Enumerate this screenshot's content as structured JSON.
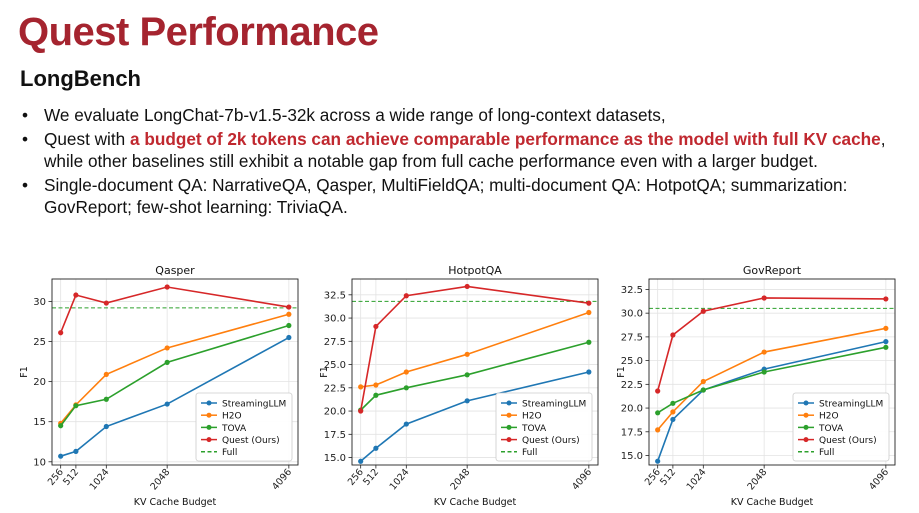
{
  "slide": {
    "title": "Quest Performance",
    "subtitle": "LongBench",
    "bullets": [
      {
        "parts": [
          {
            "text": "We evaluate LongChat-7b-v1.5-32k across a wide range of long-context datasets,",
            "highlight": false
          }
        ]
      },
      {
        "parts": [
          {
            "text": "Quest with ",
            "highlight": false
          },
          {
            "text": "a budget of 2k tokens can achieve comparable performance as the model with full KV cache",
            "highlight": true
          },
          {
            "text": ", while other baselines still exhibit a notable gap from full cache performance even with a larger budget.",
            "highlight": false
          }
        ]
      },
      {
        "parts": [
          {
            "text": "Single-document QA: NarrativeQA, Qasper, MultiFieldQA; multi-document QA: HotpotQA; summarization: GovReport; few-shot learning: TriviaQA.",
            "highlight": false
          }
        ]
      }
    ]
  },
  "chart_data": [
    {
      "type": "line",
      "title": "Qasper",
      "xlabel": "KV Cache Budget",
      "ylabel": "F1",
      "x": [
        256,
        512,
        1024,
        2048,
        4096
      ],
      "x_tick_labels": [
        "256",
        "512",
        "1024",
        "2048",
        "4096"
      ],
      "ylim": [
        9.6,
        32.8
      ],
      "yticks": [
        10,
        15,
        20,
        25,
        30
      ],
      "y_tick_labels": [
        "10",
        "15",
        "20",
        "25",
        "30"
      ],
      "grid": true,
      "legend_position": "lower-right",
      "full": 29.2,
      "series": [
        {
          "name": "StreamingLLM",
          "color": "#1f77b4",
          "values": [
            10.7,
            11.3,
            14.4,
            17.2,
            25.5
          ]
        },
        {
          "name": "H2O",
          "color": "#ff7f0e",
          "values": [
            14.8,
            17.1,
            20.9,
            24.2,
            28.4
          ]
        },
        {
          "name": "TOVA",
          "color": "#2ca02c",
          "values": [
            14.5,
            17.0,
            17.8,
            22.4,
            27.0
          ]
        },
        {
          "name": "Quest (Ours)",
          "color": "#d62728",
          "values": [
            26.1,
            30.8,
            29.8,
            31.8,
            29.3
          ]
        }
      ],
      "full_label": "Full",
      "full_color": "#2ca02c"
    },
    {
      "type": "line",
      "title": "HotpotQA",
      "xlabel": "KV Cache Budget",
      "ylabel": "F1",
      "x": [
        256,
        512,
        1024,
        2048,
        4096
      ],
      "x_tick_labels": [
        "256",
        "512",
        "1024",
        "2048",
        "4096"
      ],
      "ylim": [
        14.2,
        34.2
      ],
      "yticks": [
        15.0,
        17.5,
        20.0,
        22.5,
        25.0,
        27.5,
        30.0,
        32.5
      ],
      "y_tick_labels": [
        "15.0",
        "17.5",
        "20.0",
        "22.5",
        "25.0",
        "27.5",
        "30.0",
        "32.5"
      ],
      "grid": true,
      "legend_position": "lower-right",
      "full": 31.8,
      "series": [
        {
          "name": "StreamingLLM",
          "color": "#1f77b4",
          "values": [
            14.6,
            16.0,
            18.6,
            21.1,
            24.2
          ]
        },
        {
          "name": "H2O",
          "color": "#ff7f0e",
          "values": [
            22.6,
            22.8,
            24.2,
            26.1,
            30.6
          ]
        },
        {
          "name": "TOVA",
          "color": "#2ca02c",
          "values": [
            20.1,
            21.7,
            22.5,
            23.9,
            27.4
          ]
        },
        {
          "name": "Quest (Ours)",
          "color": "#d62728",
          "values": [
            20.0,
            29.1,
            32.4,
            33.4,
            31.6
          ]
        }
      ],
      "full_label": "Full",
      "full_color": "#2ca02c"
    },
    {
      "type": "line",
      "title": "GovReport",
      "xlabel": "KV Cache Budget",
      "ylabel": "F1",
      "x": [
        256,
        512,
        1024,
        2048,
        4096
      ],
      "x_tick_labels": [
        "256",
        "512",
        "1024",
        "2048",
        "4096"
      ],
      "ylim": [
        14.0,
        33.6
      ],
      "yticks": [
        15.0,
        17.5,
        20.0,
        22.5,
        25.0,
        27.5,
        30.0,
        32.5
      ],
      "y_tick_labels": [
        "15.0",
        "17.5",
        "20.0",
        "22.5",
        "25.0",
        "27.5",
        "30.0",
        "32.5"
      ],
      "grid": true,
      "legend_position": "lower-right",
      "full": 30.5,
      "series": [
        {
          "name": "StreamingLLM",
          "color": "#1f77b4",
          "values": [
            14.4,
            18.8,
            21.9,
            24.1,
            27.0
          ]
        },
        {
          "name": "H2O",
          "color": "#ff7f0e",
          "values": [
            17.7,
            19.6,
            22.8,
            25.9,
            28.4
          ]
        },
        {
          "name": "TOVA",
          "color": "#2ca02c",
          "values": [
            19.5,
            20.5,
            21.9,
            23.8,
            26.4
          ]
        },
        {
          "name": "Quest (Ours)",
          "color": "#d62728",
          "values": [
            21.8,
            27.7,
            30.2,
            31.6,
            31.5
          ]
        }
      ],
      "full_label": "Full",
      "full_color": "#2ca02c"
    }
  ]
}
